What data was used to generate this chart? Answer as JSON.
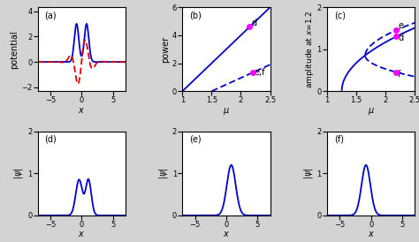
{
  "fig_bg": "#d3d3d3",
  "panel_bg": "#ffffff",
  "blue": "#0000cd",
  "red": "#dd0000",
  "magenta": "#ff00ff",
  "panel_labels": [
    "(a)",
    "(b)",
    "(c)",
    "(d)",
    "(e)",
    "(f)"
  ],
  "mu_min": 1.0,
  "mu_max": 2.5,
  "x_min": -7,
  "x_max": 7
}
